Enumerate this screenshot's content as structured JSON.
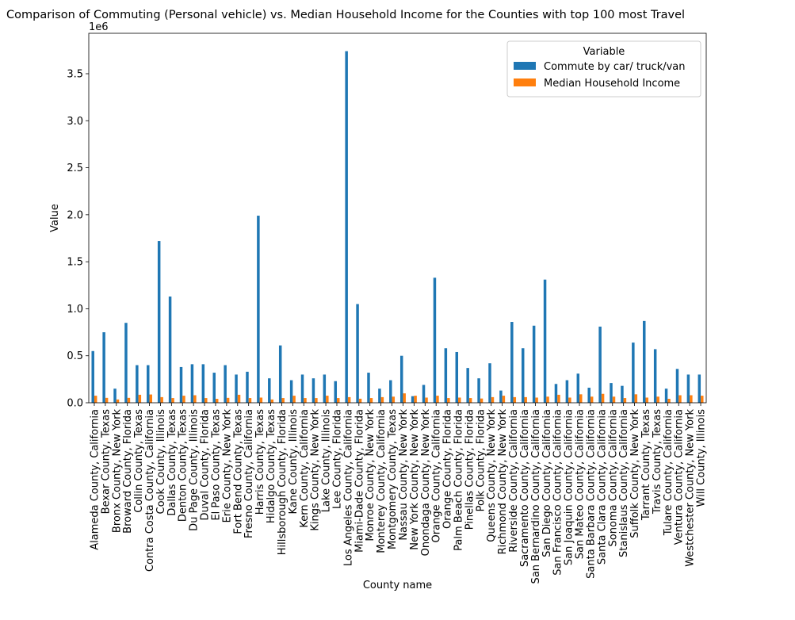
{
  "chart_data": {
    "type": "bar",
    "title": "Comparison of Commuting (Personal vehicle) vs. Median Household Income for the Counties with top 100 most Travel",
    "xlabel": "County name",
    "ylabel": "Value",
    "y_scale_label": "1e6",
    "ylim": [
      0,
      3.93
    ],
    "y_ticks": [
      0.0,
      0.5,
      1.0,
      1.5,
      2.0,
      2.5,
      3.0,
      3.5
    ],
    "y_tick_labels": [
      "0.0",
      "0.5",
      "1.0",
      "1.5",
      "2.0",
      "2.5",
      "3.0",
      "3.5"
    ],
    "value_unit_multiplier": 1000000,
    "legend": {
      "title": "Variable",
      "position": "top-right"
    },
    "colors": {
      "series_0": "#1f77b4",
      "series_1": "#ff7f0e"
    },
    "categories": [
      "Alameda County, California",
      "Bexar County, Texas",
      "Bronx County, New York",
      "Broward County, Florida",
      "Collin County, Texas",
      "Contra Costa County, California",
      "Cook County, Illinois",
      "Dallas County, Texas",
      "Denton County, Texas",
      "Du Page County, Illinois",
      "Duval County, Florida",
      "El Paso County, Texas",
      "Erie County, New York",
      "Fort Bend County, Texas",
      "Fresno County, California",
      "Harris County, Texas",
      "Hidalgo County, Texas",
      "Hillsborough County, Florida",
      "Kane County, Illinois",
      "Kern County, California",
      "Kings County, New York",
      "Lake County, Illinois",
      "Lee County, Florida",
      "Los Angeles County, California",
      "Miami-Dade County, Florida",
      "Monroe County, New York",
      "Monterey County, California",
      "Montgomery County, Texas",
      "Nassau County, New York",
      "New York County, New York",
      "Onondaga County, New York",
      "Orange County, California",
      "Orange County, Florida",
      "Palm Beach County, Florida",
      "Pinellas County, Florida",
      "Polk County, Florida",
      "Queens County, New York",
      "Richmond County, New York",
      "Riverside County, California",
      "Sacramento County, California",
      "San Bernardino County, California",
      "San Diego County, California",
      "San Francisco County, California",
      "San Joaquin County, California",
      "San Mateo County, California",
      "Santa Barbara County, California",
      "Santa Clara County, California",
      "Sonoma County, California",
      "Stanislaus County, California",
      "Suffolk County, New York",
      "Tarrant County, Texas",
      "Travis County, Texas",
      "Tulare County, California",
      "Ventura County, California",
      "Westchester County, New York",
      "Will County, Illinois"
    ],
    "series": [
      {
        "name": "Commute by car/ truck/van",
        "values": [
          0.55,
          0.75,
          0.15,
          0.85,
          0.4,
          0.4,
          1.72,
          1.13,
          0.38,
          0.41,
          0.41,
          0.32,
          0.4,
          0.3,
          0.33,
          1.99,
          0.26,
          0.61,
          0.24,
          0.3,
          0.26,
          0.3,
          0.23,
          3.74,
          1.05,
          0.32,
          0.15,
          0.24,
          0.5,
          0.07,
          0.19,
          1.33,
          0.58,
          0.54,
          0.37,
          0.26,
          0.42,
          0.13,
          0.86,
          0.58,
          0.82,
          1.31,
          0.2,
          0.24,
          0.31,
          0.16,
          0.81,
          0.21,
          0.18,
          0.64,
          0.87,
          0.57,
          0.15,
          0.36,
          0.3,
          0.3
        ]
      },
      {
        "name": "Median Household Income",
        "values": [
          0.075,
          0.052,
          0.035,
          0.052,
          0.085,
          0.088,
          0.06,
          0.05,
          0.075,
          0.08,
          0.05,
          0.042,
          0.052,
          0.085,
          0.05,
          0.055,
          0.035,
          0.05,
          0.075,
          0.05,
          0.05,
          0.075,
          0.05,
          0.06,
          0.043,
          0.05,
          0.06,
          0.065,
          0.1,
          0.075,
          0.055,
          0.075,
          0.05,
          0.055,
          0.05,
          0.045,
          0.06,
          0.075,
          0.06,
          0.06,
          0.055,
          0.065,
          0.085,
          0.055,
          0.09,
          0.065,
          0.095,
          0.065,
          0.05,
          0.09,
          0.055,
          0.065,
          0.042,
          0.08,
          0.08,
          0.075
        ]
      }
    ]
  }
}
